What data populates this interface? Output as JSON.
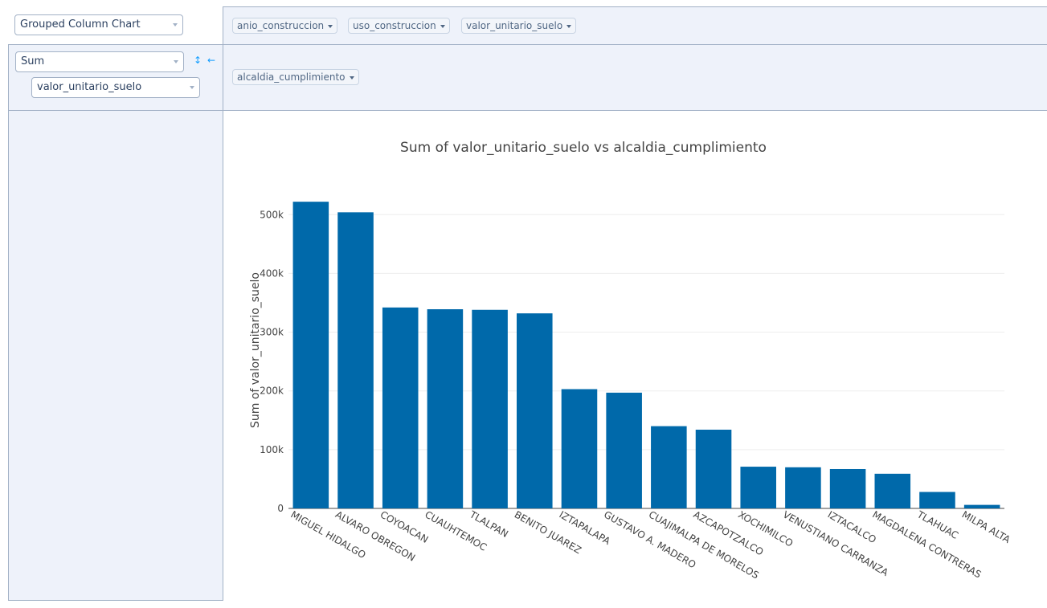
{
  "renderer": {
    "selected": "Grouped Column Chart"
  },
  "aggregator": {
    "selected": "Sum",
    "attribute": "valor_unitario_suelo",
    "sort_icon": "↕",
    "direction_icon": "←"
  },
  "columns": [
    "anio_construccion",
    "uso_construccion",
    "valor_unitario_suelo"
  ],
  "rows": [
    "alcaldia_cumplimiento"
  ],
  "chart_data": {
    "type": "bar",
    "title": "Sum of valor_unitario_suelo vs alcaldia_cumplimiento",
    "ylabel": "Sum of valor_unitario_suelo",
    "xlabel": "",
    "ylim": [
      0,
      540000
    ],
    "yticks": [
      0,
      100000,
      200000,
      300000,
      400000,
      500000
    ],
    "ytick_labels": [
      "0",
      "100k",
      "200k",
      "300k",
      "400k",
      "500k"
    ],
    "categories": [
      "MIGUEL HIDALGO",
      "ALVARO OBREGON",
      "COYOACAN",
      "CUAUHTEMOC",
      "TLALPAN",
      "BENITO JUAREZ",
      "IZTAPALAPA",
      "GUSTAVO A. MADERO",
      "CUAJIMALPA DE MORELOS",
      "AZCAPOTZALCO",
      "XOCHIMILCO",
      "VENUSTIANO CARRANZA",
      "IZTACALCO",
      "MAGDALENA CONTRERAS",
      "TLAHUAC",
      "MILPA ALTA"
    ],
    "values": [
      522000,
      504000,
      342000,
      339000,
      338000,
      332000,
      203000,
      197000,
      140000,
      134000,
      71000,
      70000,
      67000,
      59000,
      28000,
      6000
    ],
    "grid": true,
    "colors": {
      "bar": "#0069aa",
      "grid": "#eeeeee",
      "axis": "#444444"
    }
  }
}
